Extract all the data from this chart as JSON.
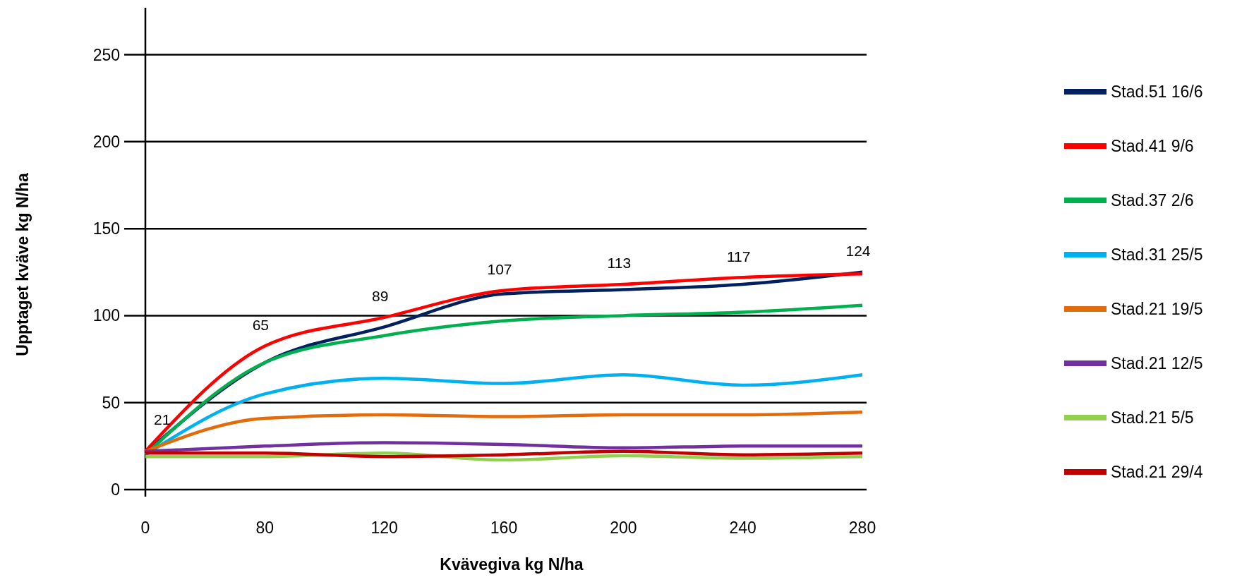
{
  "chart_data": {
    "type": "line",
    "xlabel": "Kvävegiva kg N/ha",
    "ylabel": "Upptaget kväve kg N/ha",
    "categories": [
      "0",
      "80",
      "120",
      "160",
      "200",
      "240",
      "280"
    ],
    "ylim": [
      0,
      277
    ],
    "yticks": [
      0,
      50,
      100,
      150,
      200,
      250
    ],
    "grid": "y",
    "legend": "right",
    "marker": "none",
    "series": [
      {
        "name": "Stad.51 16/6",
        "color": "#002060",
        "values": [
          21,
          73,
          93.5,
          112.5,
          115,
          118,
          125
        ]
      },
      {
        "name": "Stad.41 9/6",
        "color": "#ff0000",
        "values": [
          22,
          82.5,
          99,
          114.5,
          118,
          122,
          124
        ]
      },
      {
        "name": "Stad.37 2/6",
        "color": "#00b050",
        "values": [
          20,
          73,
          88.5,
          97,
          100,
          102,
          106
        ]
      },
      {
        "name": "Stad.31 25/5",
        "color": "#00b0f0",
        "values": [
          20,
          55,
          64,
          61,
          66,
          60,
          66
        ]
      },
      {
        "name": "Stad.21 19/5",
        "color": "#e26b0a",
        "values": [
          22,
          41,
          43,
          42,
          43,
          43,
          44.5
        ]
      },
      {
        "name": "Stad.21 12/5",
        "color": "#7030a0",
        "values": [
          22,
          25,
          27,
          26,
          24,
          25,
          25
        ]
      },
      {
        "name": "Stad.21 5/5",
        "color": "#92d050",
        "values": [
          19,
          19,
          21,
          17,
          19.5,
          18,
          19
        ]
      },
      {
        "name": "Stad.21 29/4",
        "color": "#c00000",
        "values": [
          21,
          21,
          19,
          20,
          22,
          20,
          21
        ]
      }
    ],
    "annotations": [
      "21",
      "65",
      "89",
      "107",
      "113",
      "117",
      "124"
    ]
  }
}
